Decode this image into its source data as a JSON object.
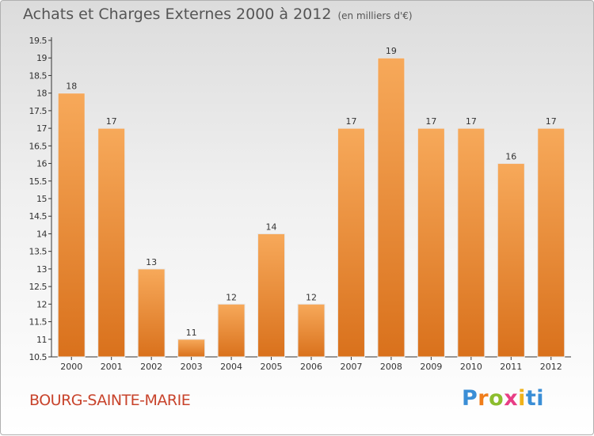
{
  "header": {
    "title": "Achats et Charges Externes 2000 à 2012",
    "subtitle": "(en milliers d'€)"
  },
  "location": "BOURG-SAINTE-MARIE",
  "logo": {
    "letters": [
      "P",
      "r",
      "o",
      "x",
      "i",
      "ti"
    ]
  },
  "colors": {
    "bar": "#f08a2c",
    "bar_light": "#f7a95a",
    "bar_dark": "#d9711c",
    "axis": "#333333",
    "grid": "#cccccc"
  },
  "chart_data": {
    "type": "bar",
    "title": "Achats et Charges Externes 2000 à 2012",
    "subtitle": "(en milliers d'€)",
    "categories": [
      "2000",
      "2001",
      "2002",
      "2003",
      "2004",
      "2005",
      "2006",
      "2007",
      "2008",
      "2009",
      "2010",
      "2011",
      "2012"
    ],
    "values": [
      18,
      17,
      13,
      11,
      12,
      14,
      12,
      17,
      19,
      17,
      17,
      16,
      17
    ],
    "ylim": [
      10.5,
      19.5
    ],
    "yticks": [
      "10.5",
      "11",
      "11.5",
      "12",
      "12.5",
      "13",
      "13.5",
      "14",
      "14.5",
      "15",
      "15.5",
      "16",
      "16.5",
      "17",
      "17.5",
      "18",
      "18.5",
      "19",
      "19.5"
    ],
    "xlabel": "",
    "ylabel": "",
    "grid": false,
    "legend": "none"
  }
}
